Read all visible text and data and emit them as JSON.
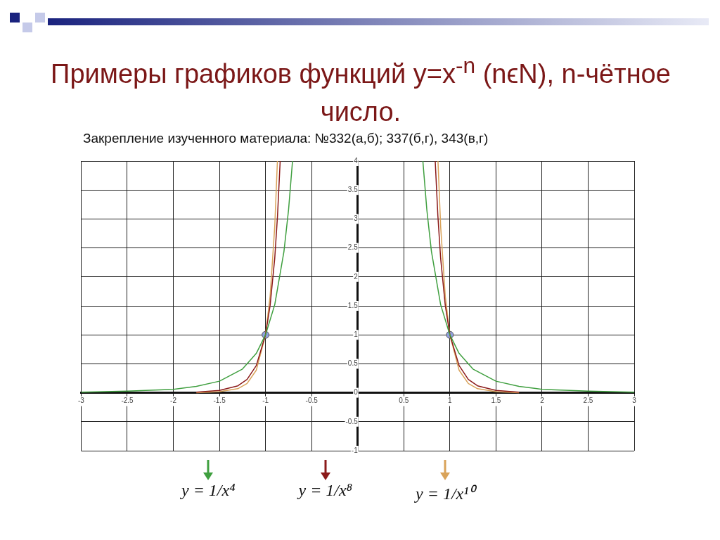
{
  "chart_data": {
    "type": "line",
    "title": "Примеры графиков функций y=x$^{-n}$ (nϵN), n-чётное число.",
    "subtitle": "Закрепление изученного материала: №332(а,б); 337(б,г), 343(в,г)",
    "series": [
      {
        "name": "y = 1/x⁴",
        "color": "#3f9f3f",
        "x": [
          -3,
          -2.5,
          -2,
          -1.75,
          -1.5,
          -1.25,
          -1.1,
          -1,
          -0.9,
          -0.8,
          -0.75,
          -0.707,
          0,
          0.707,
          0.75,
          0.8,
          0.9,
          1,
          1.1,
          1.25,
          1.5,
          1.75,
          2,
          2.5,
          3
        ],
        "values": [
          0.01,
          0.03,
          0.06,
          0.11,
          0.2,
          0.41,
          0.68,
          1,
          1.52,
          2.44,
          3.16,
          4,
          null,
          4,
          3.16,
          2.44,
          1.52,
          1,
          0.68,
          0.41,
          0.2,
          0.11,
          0.06,
          0.03,
          0.01
        ]
      },
      {
        "name": "y = 1/x⁸",
        "color": "#8b1a1a",
        "x": [
          -1.75,
          -1.5,
          -1.3,
          -1.2,
          -1.1,
          -1,
          -0.95,
          -0.9,
          -0.87,
          -0.841,
          0,
          0.841,
          0.87,
          0.9,
          0.95,
          1,
          1.1,
          1.2,
          1.3,
          1.5,
          1.75
        ],
        "values": [
          0.01,
          0.04,
          0.12,
          0.23,
          0.47,
          1,
          1.51,
          2.32,
          3.05,
          4,
          null,
          4,
          3.05,
          2.32,
          1.51,
          1,
          0.47,
          0.23,
          0.12,
          0.04,
          0.01
        ]
      },
      {
        "name": "y = 1/x¹⁰",
        "color": "#d9a35a",
        "x": [
          -1.75,
          -1.5,
          -1.3,
          -1.2,
          -1.1,
          -1,
          -0.95,
          -0.9,
          -0.871,
          0,
          0.871,
          0.9,
          0.95,
          1,
          1.1,
          1.2,
          1.3,
          1.5,
          1.75
        ],
        "values": [
          0.0,
          0.02,
          0.07,
          0.16,
          0.39,
          1,
          1.67,
          2.87,
          4,
          null,
          4,
          2.87,
          1.67,
          1,
          0.39,
          0.16,
          0.07,
          0.02,
          0.0
        ]
      },
      {
        "type": "scatter",
        "color": "#8fa0e0",
        "x": [
          -1,
          1
        ],
        "values": [
          1,
          1
        ],
        "marker": "circle"
      }
    ],
    "xlim": [
      -3,
      3
    ],
    "ylim": [
      -1,
      4
    ],
    "xticks": [
      -3,
      -2.5,
      -2,
      -1.5,
      -1,
      -0.5,
      {
        "value": 0,
        "label": null
      },
      0.5,
      1,
      1.5,
      2,
      2.5,
      3
    ],
    "yticks": [
      -1,
      -0.5,
      0,
      0.5,
      1,
      1.5,
      2,
      2.5,
      3,
      3.5,
      4
    ],
    "grid": true,
    "legend": "bottom"
  }
}
